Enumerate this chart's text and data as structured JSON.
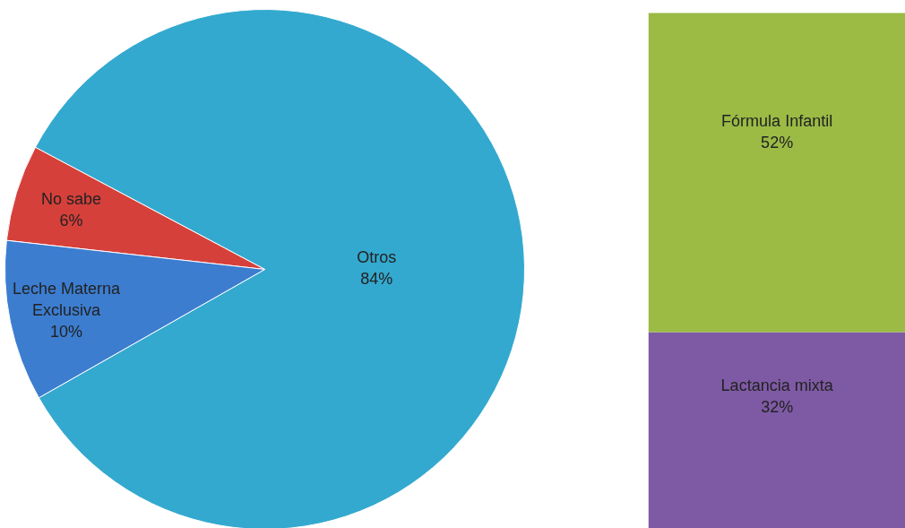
{
  "chart_data": [
    {
      "type": "pie",
      "categories": [
        "Otros",
        "No sabe",
        "Leche Materna Exclusiva"
      ],
      "values": [
        84,
        6,
        10
      ],
      "colors": [
        "#34a9cf",
        "#d6403b",
        "#3c7dd0"
      ],
      "value_labels": [
        "84%",
        "6%",
        "10%"
      ]
    },
    {
      "type": "bar",
      "stacked": true,
      "categories": [
        null
      ],
      "series": [
        {
          "name": "Lactancia mixta",
          "color": "#7e5aa4",
          "values": [
            32
          ],
          "value_labels": [
            "32%"
          ]
        },
        {
          "name": "Fórmula Infantil",
          "color": "#9bbb45",
          "values": [
            52
          ],
          "value_labels": [
            "52%"
          ]
        }
      ]
    }
  ]
}
